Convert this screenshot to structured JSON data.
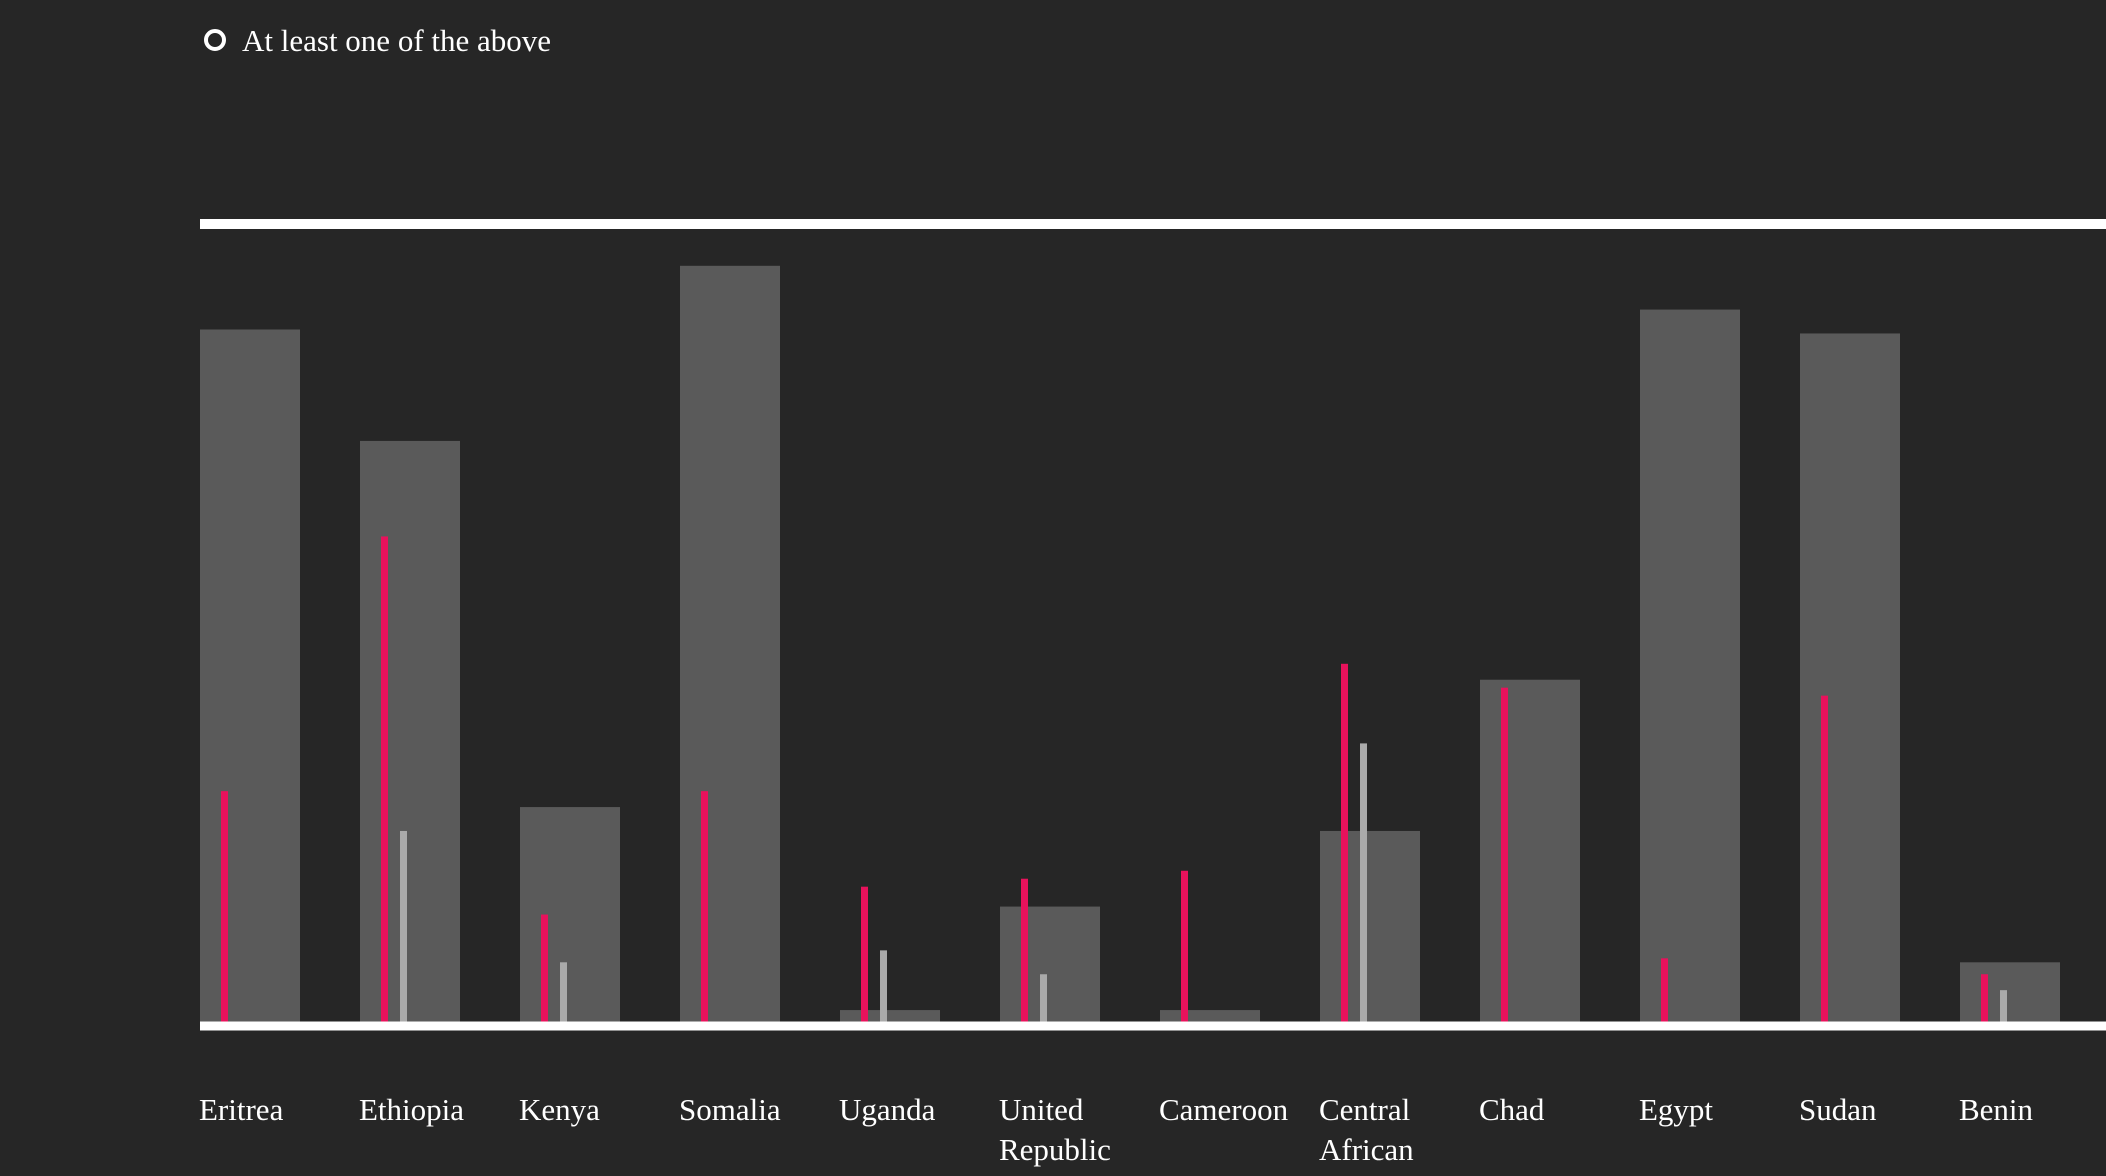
{
  "legend": {
    "option_label": "At least one of the above"
  },
  "colors": {
    "background": "#262626",
    "bar": "#5a5a5a",
    "accent": "#e8125c",
    "secondary": "#aaaaaa",
    "axis": "#ffffff"
  },
  "chart_data": {
    "type": "bar",
    "categories": [
      [
        "Eritrea"
      ],
      [
        "Ethiopia"
      ],
      [
        "Kenya"
      ],
      [
        "Somalia"
      ],
      [
        "Uganda"
      ],
      [
        "United",
        "Republic"
      ],
      [
        "Cameroon"
      ],
      [
        "Central",
        "African"
      ],
      [
        "Chad"
      ],
      [
        "Egypt"
      ],
      [
        "Sudan"
      ],
      [
        "Benin"
      ]
    ],
    "ylim": [
      0,
      100
    ],
    "series": [
      {
        "values": [
          87,
          73,
          27,
          95,
          1.5,
          14.5,
          1.5,
          24,
          43,
          89.5,
          86.5,
          7.5
        ]
      },
      {
        "values": [
          29,
          61,
          13.5,
          29,
          17,
          18,
          19,
          45,
          42,
          8,
          41,
          6
        ]
      },
      {
        "values": [
          null,
          24,
          7.5,
          null,
          9,
          6,
          null,
          35,
          null,
          null,
          null,
          4
        ]
      }
    ]
  }
}
